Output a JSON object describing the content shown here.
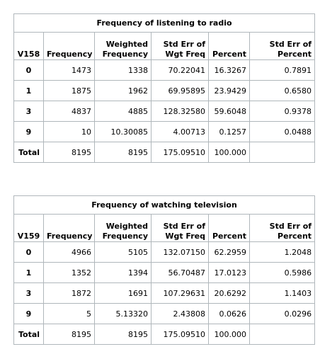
{
  "tables": [
    {
      "title": "Frequency of listening to radio",
      "headers": {
        "var": "V158",
        "frequency": "Frequency",
        "weighted_line1": "Weighted",
        "weighted_line2": "Frequency",
        "stderr_wgt_line1": "Std Err of",
        "stderr_wgt_line2": "Wgt Freq",
        "percent": "Percent",
        "stderr_pct_line1": "Std Err of",
        "stderr_pct_line2": "Percent"
      },
      "rows": [
        {
          "value": "0",
          "frequency": "1473",
          "weighted": "1338",
          "stderr_wgt": "70.22041",
          "percent": "16.3267",
          "stderr_pct": "0.7891"
        },
        {
          "value": "1",
          "frequency": "1875",
          "weighted": "1962",
          "stderr_wgt": "69.95895",
          "percent": "23.9429",
          "stderr_pct": "0.6580"
        },
        {
          "value": "3",
          "frequency": "4837",
          "weighted": "4885",
          "stderr_wgt": "128.32580",
          "percent": "59.6048",
          "stderr_pct": "0.9378"
        },
        {
          "value": "9",
          "frequency": "10",
          "weighted": "10.30085",
          "stderr_wgt": "4.00713",
          "percent": "0.1257",
          "stderr_pct": "0.0488"
        },
        {
          "value": "Total",
          "frequency": "8195",
          "weighted": "8195",
          "stderr_wgt": "175.09510",
          "percent": "100.000",
          "stderr_pct": ""
        }
      ]
    },
    {
      "title": "Frequency of watching television",
      "headers": {
        "var": "V159",
        "frequency": "Frequency",
        "weighted_line1": "Weighted",
        "weighted_line2": "Frequency",
        "stderr_wgt_line1": "Std Err of",
        "stderr_wgt_line2": "Wgt Freq",
        "percent": "Percent",
        "stderr_pct_line1": "Std Err of",
        "stderr_pct_line2": "Percent"
      },
      "rows": [
        {
          "value": "0",
          "frequency": "4966",
          "weighted": "5105",
          "stderr_wgt": "132.07150",
          "percent": "62.2959",
          "stderr_pct": "1.2048"
        },
        {
          "value": "1",
          "frequency": "1352",
          "weighted": "1394",
          "stderr_wgt": "56.70487",
          "percent": "17.0123",
          "stderr_pct": "0.5986"
        },
        {
          "value": "3",
          "frequency": "1872",
          "weighted": "1691",
          "stderr_wgt": "107.29631",
          "percent": "20.6292",
          "stderr_pct": "1.1403"
        },
        {
          "value": "9",
          "frequency": "5",
          "weighted": "5.13320",
          "stderr_wgt": "2.43808",
          "percent": "0.0626",
          "stderr_pct": "0.0296"
        },
        {
          "value": "Total",
          "frequency": "8195",
          "weighted": "8195",
          "stderr_wgt": "175.09510",
          "percent": "100.000",
          "stderr_pct": ""
        }
      ]
    }
  ]
}
